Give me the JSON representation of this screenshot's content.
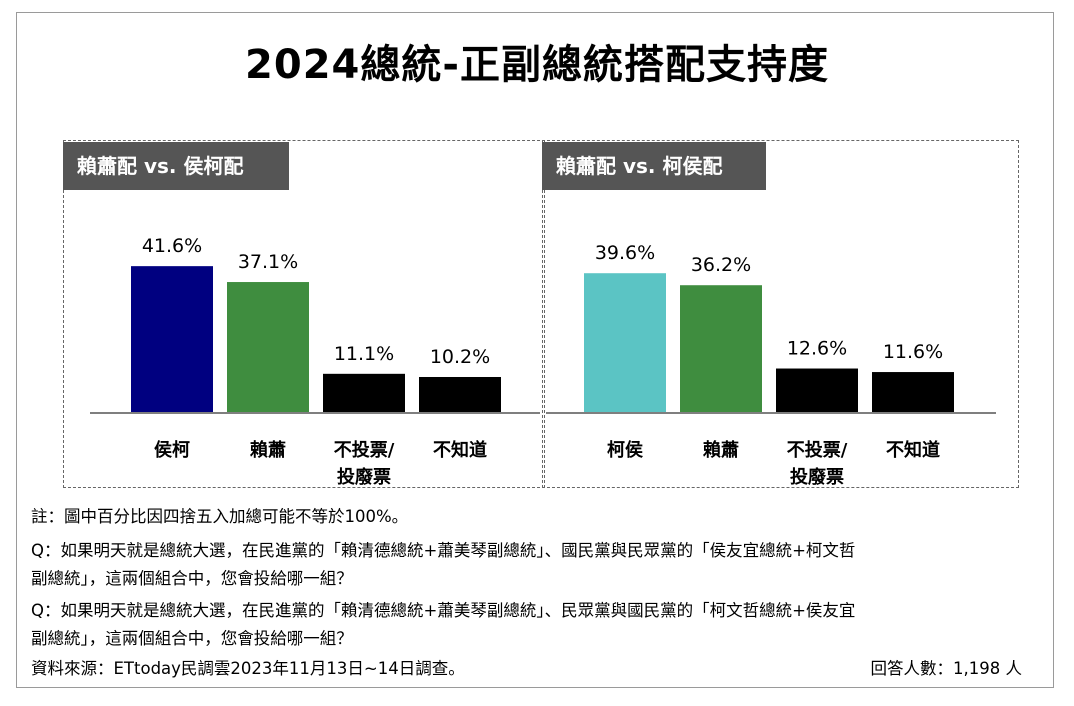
{
  "title": "2024總統-正副總統搭配支持度",
  "chart_data": [
    {
      "type": "bar",
      "title": "賴蕭配 vs. 侯柯配",
      "categories": [
        "侯柯",
        "賴蕭",
        "不投票/\n投廢票",
        "不知道"
      ],
      "values": [
        41.6,
        37.1,
        11.1,
        10.2
      ],
      "value_labels": [
        "41.6%",
        "37.1%",
        "11.1%",
        "10.2%"
      ],
      "colors": [
        "#000080",
        "#3f8d3f",
        "#000000",
        "#000000"
      ],
      "unit": "%",
      "ylim": [
        0,
        50
      ],
      "grid": false
    },
    {
      "type": "bar",
      "title": "賴蕭配 vs. 柯侯配",
      "categories": [
        "柯侯",
        "賴蕭",
        "不投票/\n投廢票",
        "不知道"
      ],
      "values": [
        39.6,
        36.2,
        12.6,
        11.6
      ],
      "value_labels": [
        "39.6%",
        "36.2%",
        "12.6%",
        "11.6%"
      ],
      "colors": [
        "#5bc4c4",
        "#3f8d3f",
        "#000000",
        "#000000"
      ],
      "unit": "%",
      "ylim": [
        0,
        50
      ],
      "grid": false
    }
  ],
  "notes": {
    "line1": "註：圖中百分比因四捨五入加總可能不等於100%。",
    "line2": "Q：如果明天就是總統大選，在民進黨的「賴清德總統+蕭美琴副總統」、國民黨與民眾黨的「侯友宜總統+柯文哲",
    "line3": "副總統」，這兩個組合中，您會投給哪一組？",
    "line4": "Q：如果明天就是總統大選，在民進黨的「賴清德總統+蕭美琴副總統」、民眾黨與國民黨的「柯文哲總統+侯友宜",
    "line5": "副總統」，這兩個組合中，您會投給哪一組？",
    "source": "資料來源：ETtoday民調雲2023年11月13日~14日調查。",
    "respondents": "回答人數：1,198 人"
  }
}
